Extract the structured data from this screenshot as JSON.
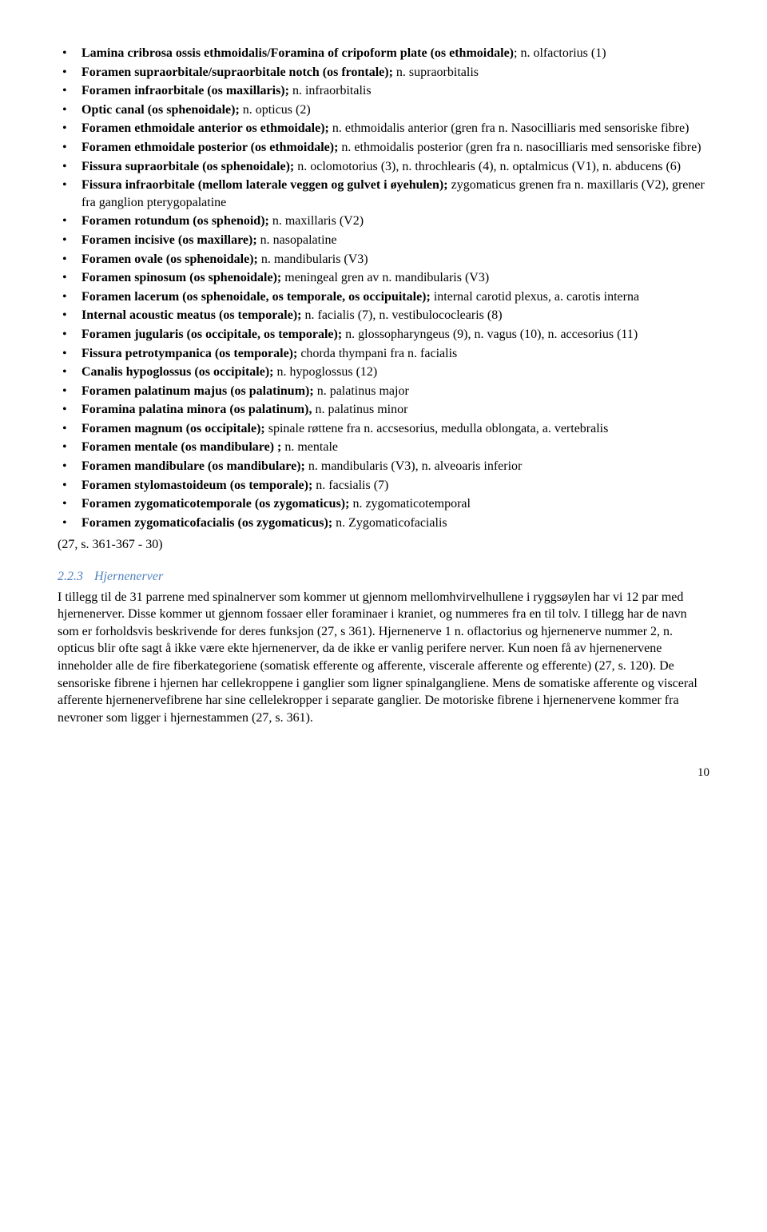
{
  "items": [
    {
      "bold": "Lamina cribrosa ossis ethmoidalis/Foramina of cripoform plate (os ethmoidale)",
      "plain": "; n. olfactorius (1)"
    },
    {
      "bold": "Foramen supraorbitale/supraorbitale notch (os frontale);",
      "plain": " n. supraorbitalis"
    },
    {
      "bold": "Foramen infraorbitale (os maxillaris);",
      "plain": " n. infraorbitalis"
    },
    {
      "bold": "Optic canal (os sphenoidale);",
      "plain": " n. opticus (2)"
    },
    {
      "bold": "Foramen ethmoidale anterior os ethmoidale);",
      "plain": " n. ethmoidalis anterior (gren fra n. Nasocilliaris med sensoriske fibre)"
    },
    {
      "bold": "Foramen ethmoidale posterior (os ethmoidale);",
      "plain": " n. ethmoidalis posterior (gren fra n. nasocilliaris med sensoriske fibre)"
    },
    {
      "bold": "Fissura supraorbitale (os sphenoidale);",
      "plain": " n. oclomotorius (3), n. throchlearis (4), n. optalmicus (V1), n. abducens (6)"
    },
    {
      "bold": "Fissura infraorbitale (mellom laterale veggen og gulvet i øyehulen);",
      "plain": " zygomaticus grenen fra n. maxillaris (V2), grener fra ganglion pterygopalatine"
    },
    {
      "bold": "Foramen rotundum (os sphenoid);",
      "plain": " n. maxillaris (V2)"
    },
    {
      "bold": "Foramen incisive (os maxillare);",
      "plain": " n. nasopalatine"
    },
    {
      "bold": "Foramen ovale (os sphenoidale);",
      "plain": " n. mandibularis (V3)"
    },
    {
      "bold": "Foramen spinosum (os sphenoidale);",
      "plain": " meningeal gren av n. mandibularis (V3)"
    },
    {
      "bold": "Foramen lacerum (os sphenoidale, os temporale, os occipuitale);",
      "plain": " internal carotid plexus, a. carotis interna"
    },
    {
      "bold": "Internal acoustic meatus (os temporale);",
      "plain": " n. facialis (7), n. vestibulococlearis (8)"
    },
    {
      "bold": "Foramen jugularis (os occipitale, os temporale);",
      "plain": " n. glossopharyngeus (9), n. vagus (10), n. accesorius (11)"
    },
    {
      "bold": "Fissura petrotympanica (os temporale);",
      "plain": " chorda thympani fra n. facialis"
    },
    {
      "bold": "Canalis hypoglossus (os occipitale);",
      "plain": " n. hypoglossus (12)"
    },
    {
      "bold": "Foramen palatinum majus (os palatinum);",
      "plain": " n. palatinus major"
    },
    {
      "bold": "Foramina palatina minora (os palatinum),",
      "plain": " n. palatinus minor"
    },
    {
      "bold": "Foramen magnum (os occipitale);",
      "plain": " spinale røttene fra n. accsesorius, medulla oblongata, a. vertebralis"
    },
    {
      "bold": "Foramen mentale (os mandibulare) ;",
      "plain": " n. mentale"
    },
    {
      "bold": "Foramen mandibulare (os mandibulare);",
      "plain": " n. mandibularis (V3), n. alveoaris inferior"
    },
    {
      "bold": "Foramen stylomastoideum (os temporale);",
      "plain": " n. facsialis (7)"
    },
    {
      "bold": "Foramen zygomaticotemporale (os zygomaticus);",
      "plain": " n. zygomaticotemporal"
    },
    {
      "bold": "Foramen zygomaticofacialis (os zygomaticus);",
      "plain": " n. Zygomaticofacialis"
    }
  ],
  "reference": "(27, s. 361-367 - 30)",
  "section": {
    "num": "2.2.3",
    "title": "Hjernenerver"
  },
  "paragraph": "I tillegg til de 31 parrene med spinalnerver som kommer ut gjennom mellomhvirvelhullene i ryggsøylen har vi 12 par med hjernenerver. Disse kommer ut gjennom fossaer eller foraminaer i kraniet, og nummeres fra en til tolv. I tillegg har de navn som er forholdsvis beskrivende for deres funksjon (27, s 361). Hjernenerve 1 n. oflactorius og hjernenerve nummer 2, n. opticus blir ofte sagt å ikke være ekte hjernenerver, da de ikke er vanlig perifere nerver. Kun noen få av hjernenervene inneholder alle de fire fiberkategoriene (somatisk efferente og afferente, viscerale afferente og efferente) (27, s. 120). De sensoriske fibrene i hjernen har cellekroppene i ganglier som ligner spinalgangliene. Mens de somatiske afferente og visceral afferente hjernenervefibrene har sine cellelekropper i separate ganglier. De motoriske fibrene i hjernenervene kommer fra nevroner som ligger i hjernestammen (27, s. 361).",
  "pagenum": "10",
  "colors": {
    "heading": "#4f81bd",
    "text": "#000000",
    "background": "#ffffff"
  }
}
